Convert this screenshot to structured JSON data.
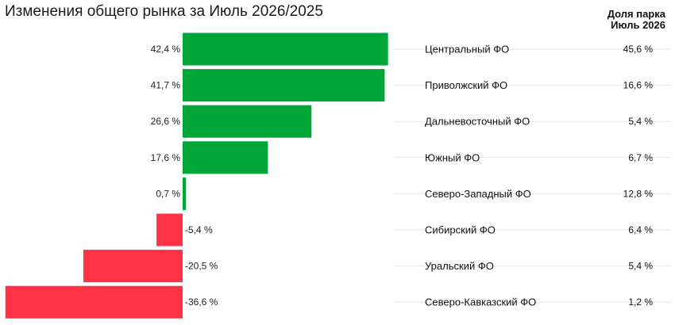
{
  "chart_data": {
    "type": "bar",
    "orientation": "horizontal",
    "title": "Изменения общего рынка за Июль 2026/2025",
    "share_header": [
      "Доля парка",
      "Июль 2026"
    ],
    "unit": "%",
    "categories": [
      "Центральный ФО",
      "Приволжский ФО",
      "Дальневосточный ФО",
      "Южный ФО",
      "Северо-Западный ФО",
      "Сибирский ФО",
      "Уральский ФО",
      "Северо-Кавказский ФО"
    ],
    "values": [
      42.4,
      41.7,
      26.6,
      17.6,
      0.7,
      -5.4,
      -20.5,
      -36.6
    ],
    "value_labels": [
      "42,4 %",
      "41,7 %",
      "26,6 %",
      "17,6 %",
      "0,7 %",
      "-5,4 %",
      "-20,5 %",
      "-36,6 %"
    ],
    "share_labels": [
      "45,6 %",
      "16,6 %",
      "5,4 %",
      "6,7 %",
      "12,8 %",
      "6,4 %",
      "5,4 %",
      "1,2 %"
    ],
    "colors": {
      "positive": "#00a537",
      "negative": "#ff3347",
      "gridline": "#e6e6e6"
    }
  }
}
